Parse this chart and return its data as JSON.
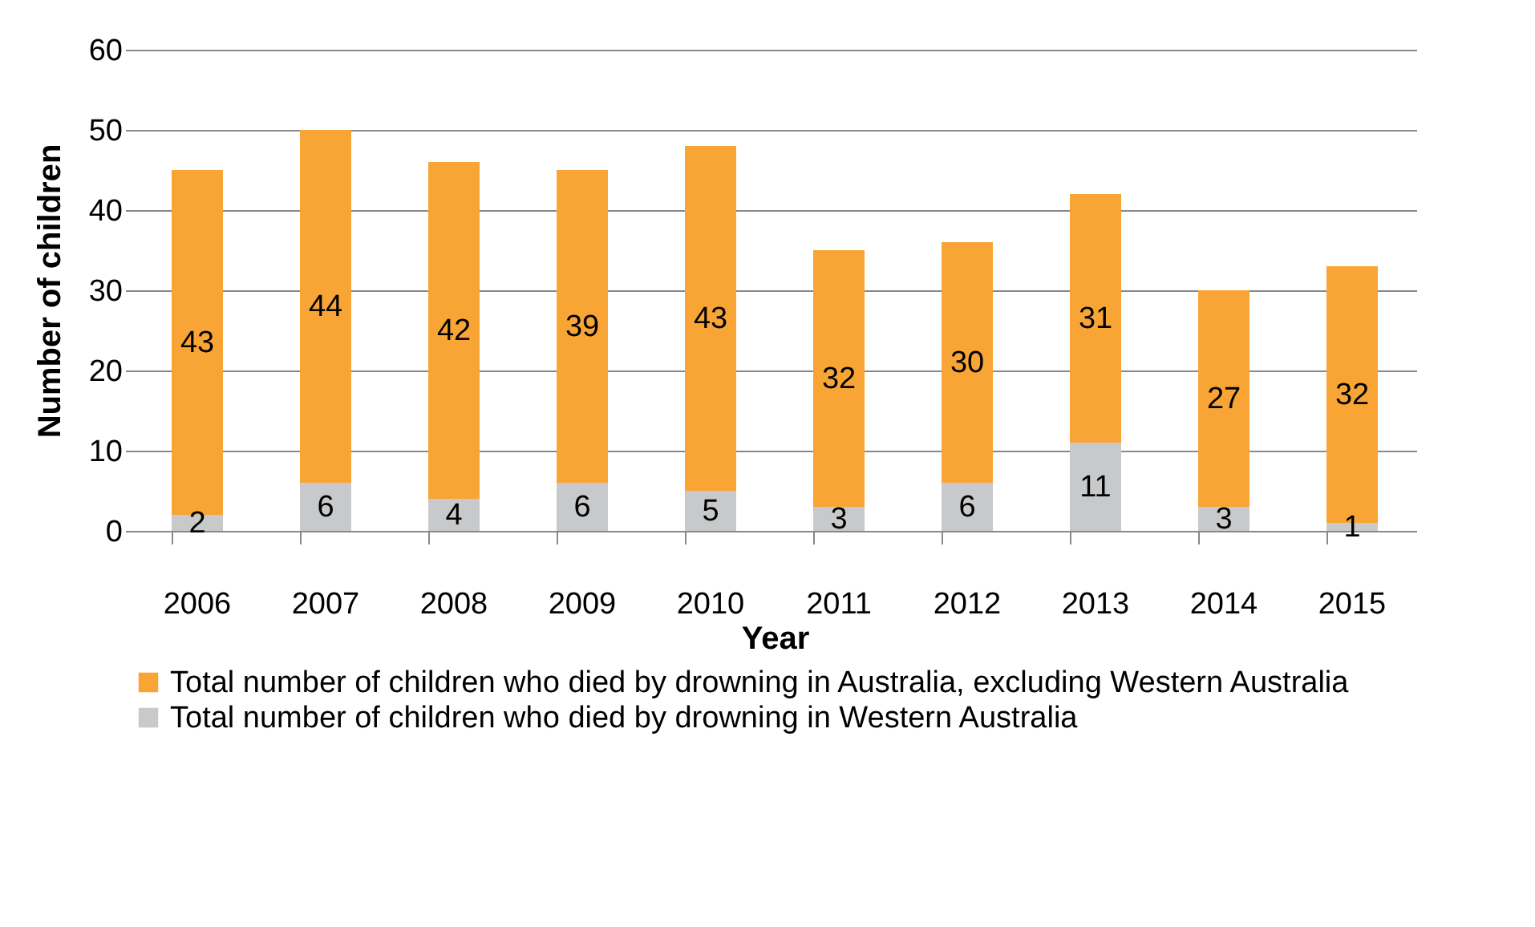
{
  "chart_data": {
    "type": "bar",
    "stacked": true,
    "xlabel": "Year",
    "ylabel": "Number of children",
    "categories": [
      "2006",
      "2007",
      "2008",
      "2009",
      "2010",
      "2011",
      "2012",
      "2013",
      "2014",
      "2015"
    ],
    "series": [
      {
        "name": "Total number of children who died by drowning in Western Australia",
        "color": "#c8c9ca",
        "values": [
          2,
          6,
          4,
          6,
          5,
          3,
          6,
          11,
          3,
          1
        ]
      },
      {
        "name": "Total number of children who died by drowning in Australia, excluding Western Australia",
        "color": "#f8a535",
        "values": [
          43,
          44,
          42,
          39,
          43,
          32,
          30,
          31,
          27,
          32
        ]
      }
    ],
    "ylim": [
      0,
      60
    ],
    "yticks": [
      0,
      10,
      20,
      30,
      40,
      50,
      60
    ],
    "grid": "y",
    "legend": "bottom",
    "data_labels": true
  }
}
